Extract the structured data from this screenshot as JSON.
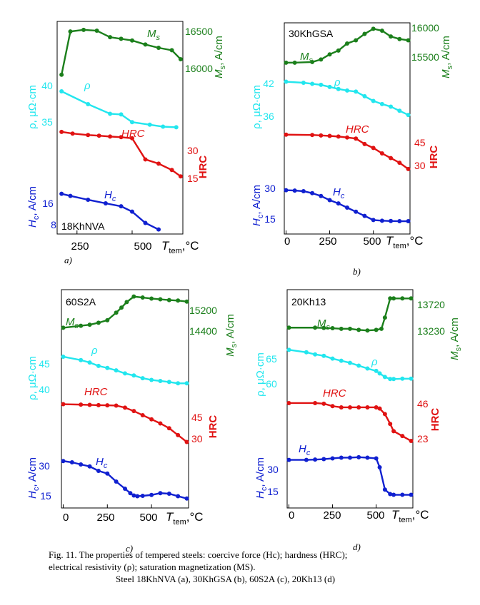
{
  "colors": {
    "Ms": "#1b7f1b",
    "rho": "#22e6ee",
    "HRC": "#e01212",
    "Hc": "#1020d0",
    "axis": "#000000"
  },
  "caption": {
    "line1": "Fig. 11. The properties of tempered steels: coercive force (Hc); hardness (HRC);",
    "line2": "electrical resistivity (ρ); saturation magnetization (MS).",
    "line3": "Steel 18KhNVA (a), 30KhGSA (b), 60S2A (c), 20Kh13 (d)"
  },
  "chart_data": [
    {
      "type": "line",
      "panel_label": "a)",
      "steel": "18KhNVA",
      "xlabel_main": "T",
      "xlabel_sub": "tem",
      "xlabel_unit": ",°C",
      "x_ticks": [
        250,
        500
      ],
      "x_range": [
        160,
        730
      ],
      "left_labels": [
        "H",
        "c",
        ", A/cm",
        "ρ, μΩ·cm"
      ],
      "right_labels": [
        "M",
        "s",
        ", A/cm",
        "HRC"
      ],
      "left_ticks": {
        "Hc": [
          "16",
          "8"
        ],
        "rho": [
          "40",
          "35"
        ]
      },
      "right_ticks": {
        "Ms": [
          "16500",
          "16000"
        ],
        "HRC": [
          "30",
          "15"
        ]
      },
      "series": [
        {
          "key": "Ms",
          "name": "Ms",
          "x": [
            180,
            220,
            280,
            340,
            400,
            450,
            500,
            560,
            620,
            680,
            720
          ],
          "y": [
            15970,
            16500,
            16520,
            16510,
            16430,
            16410,
            16390,
            16340,
            16300,
            16270,
            16160
          ],
          "range": [
            15880,
            16580
          ]
        },
        {
          "key": "rho",
          "name": "ρ",
          "x": [
            180,
            300,
            400,
            450,
            500,
            580,
            640,
            700
          ],
          "y": [
            40.0,
            38.0,
            36.5,
            36.4,
            35.2,
            34.8,
            34.5,
            34.4
          ],
          "range": [
            32,
            42
          ]
        },
        {
          "key": "HRC",
          "name": "HRC",
          "x": [
            180,
            230,
            300,
            350,
            400,
            450,
            500,
            560,
            620,
            680,
            720
          ],
          "y": [
            35.0,
            34.2,
            33.5,
            33.2,
            32.8,
            32.5,
            32.0,
            22.0,
            20.0,
            17.0,
            14.0
          ],
          "range": [
            8,
            40
          ]
        },
        {
          "key": "Hc",
          "name": "Hc",
          "x": [
            180,
            220,
            300,
            380,
            450,
            500,
            560,
            620
          ],
          "y": [
            20.0,
            19.3,
            18.0,
            16.8,
            15.8,
            14.0,
            10.2,
            8.0
          ],
          "range": [
            6,
            24
          ]
        }
      ]
    },
    {
      "type": "line",
      "panel_label": "b)",
      "steel": "30KhGSA",
      "xlabel_main": "T",
      "xlabel_sub": "tem",
      "xlabel_unit": ",°C",
      "x_ticks": [
        0,
        250,
        500
      ],
      "x_range": [
        -10,
        710
      ],
      "left_labels": [
        "H",
        "c",
        ", A/cm",
        "ρ, μΩ·cm"
      ],
      "right_labels": [
        "M",
        "s",
        ", A/cm",
        "HRC"
      ],
      "left_ticks": {
        "Hc": [
          "30",
          "15"
        ],
        "rho": [
          "42",
          "36"
        ]
      },
      "right_ticks": {
        "Ms": [
          "16000",
          "15500"
        ],
        "HRC": [
          "45",
          "30"
        ]
      },
      "series": [
        {
          "key": "Ms",
          "name": "Ms",
          "x": [
            0,
            50,
            150,
            200,
            250,
            300,
            350,
            400,
            450,
            500,
            550,
            600,
            650,
            700
          ],
          "y": [
            15430,
            15430,
            15440,
            15480,
            15560,
            15620,
            15730,
            15780,
            15880,
            15960,
            15930,
            15840,
            15800,
            15780
          ],
          "range": [
            15350,
            16020
          ]
        },
        {
          "key": "rho",
          "name": "ρ",
          "x": [
            0,
            100,
            150,
            200,
            250,
            300,
            350,
            400,
            450,
            500,
            550,
            600,
            650,
            700
          ],
          "y": [
            42.0,
            41.8,
            41.6,
            41.4,
            41.0,
            40.6,
            40.3,
            40.1,
            39.2,
            38.3,
            37.7,
            37.2,
            36.4,
            35.6
          ],
          "range": [
            33,
            44
          ]
        },
        {
          "key": "HRC",
          "name": "HRC",
          "x": [
            0,
            150,
            200,
            250,
            300,
            350,
            400,
            450,
            500,
            550,
            600,
            650,
            700
          ],
          "y": [
            50.0,
            49.8,
            49.5,
            49.2,
            48.8,
            48.2,
            47.5,
            44.0,
            41.5,
            38.0,
            35.0,
            32.0,
            28.0
          ],
          "range": [
            22,
            54
          ]
        },
        {
          "key": "Hc",
          "name": "Hc",
          "x": [
            0,
            50,
            100,
            150,
            200,
            250,
            300,
            350,
            400,
            450,
            500,
            550,
            600,
            650,
            700
          ],
          "y": [
            31.0,
            30.8,
            30.4,
            29.2,
            27.5,
            25.0,
            23.0,
            20.5,
            18.0,
            15.5,
            13.0,
            12.6,
            12.4,
            12.3,
            12.3
          ],
          "range": [
            8,
            36
          ]
        }
      ]
    },
    {
      "type": "line",
      "panel_label": "c)",
      "steel": "60S2A",
      "xlabel_main": "T",
      "xlabel_sub": "tem",
      "xlabel_unit": ",°C",
      "x_ticks": [
        0,
        250,
        500
      ],
      "x_range": [
        -10,
        710
      ],
      "left_labels": [
        "H",
        "c",
        ", A/cm",
        "ρ, μΩ·cm"
      ],
      "right_labels": [
        "M",
        "s",
        ", A/cm",
        "HRC"
      ],
      "left_ticks": {
        "Hc": [
          "30",
          "15"
        ],
        "rho": [
          "45",
          "40"
        ]
      },
      "right_ticks": {
        "Ms": [
          "15200",
          "14400"
        ],
        "HRC": [
          "45",
          "30"
        ]
      },
      "series": [
        {
          "key": "Ms",
          "name": "Ms",
          "x": [
            0,
            100,
            150,
            200,
            250,
            300,
            330,
            360,
            400,
            450,
            500,
            550,
            600,
            650,
            700
          ],
          "y": [
            14400,
            14480,
            14520,
            14600,
            14700,
            15000,
            15200,
            15420,
            15640,
            15600,
            15560,
            15530,
            15500,
            15480,
            15440
          ],
          "range": [
            14100,
            15800
          ]
        },
        {
          "key": "rho",
          "name": "ρ",
          "x": [
            0,
            100,
            150,
            200,
            250,
            300,
            350,
            400,
            450,
            500,
            550,
            600,
            650,
            700
          ],
          "y": [
            47.5,
            46.5,
            45.8,
            44.8,
            44.2,
            43.5,
            42.6,
            42.0,
            41.2,
            40.7,
            40.4,
            40.1,
            39.7,
            39.7
          ],
          "range": [
            36,
            50
          ]
        },
        {
          "key": "HRC",
          "name": "HRC",
          "x": [
            0,
            100,
            150,
            200,
            250,
            300,
            350,
            400,
            450,
            500,
            550,
            600,
            650,
            700
          ],
          "y": [
            56.0,
            55.7,
            55.5,
            55.3,
            55.2,
            55.0,
            53.5,
            51.0,
            48.0,
            45.0,
            42.0,
            38.5,
            33.5,
            28.5
          ],
          "range": [
            22,
            62
          ]
        },
        {
          "key": "Hc",
          "name": "Hc",
          "x": [
            0,
            50,
            100,
            150,
            200,
            250,
            300,
            350,
            380,
            400,
            420,
            450,
            500,
            550,
            600,
            650,
            700
          ],
          "y": [
            33.5,
            32.8,
            31.6,
            30.5,
            28.0,
            26.5,
            22.0,
            18.0,
            15.5,
            14.2,
            13.8,
            14.0,
            14.5,
            15.5,
            15.2,
            13.8,
            12.5
          ],
          "range": [
            8,
            38
          ]
        }
      ]
    },
    {
      "type": "line",
      "panel_label": "d)",
      "steel": "20Kh13",
      "xlabel_main": "T",
      "xlabel_sub": "tem",
      "xlabel_unit": ",°C",
      "x_ticks": [
        0,
        250,
        500
      ],
      "x_range": [
        -10,
        710
      ],
      "left_labels": [
        "H",
        "c",
        ", A/cm",
        "ρ, μΩ·cm"
      ],
      "right_labels": [
        "M",
        "s",
        ", A/cm",
        "HRC"
      ],
      "left_ticks": {
        "Hc": [
          "30",
          "15"
        ],
        "rho": [
          "65",
          "60"
        ]
      },
      "right_ticks": {
        "Ms": [
          "13720",
          "13230"
        ],
        "HRC": [
          "46",
          "23"
        ]
      },
      "series": [
        {
          "key": "Ms",
          "name": "Ms",
          "x": [
            0,
            150,
            200,
            250,
            300,
            350,
            400,
            450,
            500,
            530,
            550,
            580,
            600,
            650,
            700
          ],
          "y": [
            13200,
            13200,
            13195,
            13190,
            13180,
            13180,
            13160,
            13150,
            13160,
            13180,
            13380,
            13720,
            13720,
            13720,
            13720
          ],
          "range": [
            13000,
            13800
          ]
        },
        {
          "key": "rho",
          "name": "ρ",
          "x": [
            0,
            100,
            150,
            200,
            250,
            300,
            350,
            400,
            450,
            500,
            520,
            550,
            580,
            600,
            650,
            700
          ],
          "y": [
            67.5,
            66.8,
            66.2,
            65.8,
            65.0,
            64.4,
            63.8,
            63.0,
            62.2,
            61.5,
            60.8,
            59.8,
            59.2,
            59.2,
            59.3,
            59.3
          ],
          "range": [
            55,
            70
          ]
        },
        {
          "key": "HRC",
          "name": "HRC",
          "x": [
            0,
            150,
            200,
            250,
            300,
            350,
            400,
            450,
            500,
            520,
            550,
            580,
            600,
            650,
            700
          ],
          "y": [
            53.0,
            53.0,
            52.5,
            50.5,
            49.5,
            49.5,
            49.5,
            49.5,
            49.5,
            48.5,
            44.0,
            36.0,
            30.0,
            26.0,
            22.0
          ],
          "range": [
            15,
            60
          ]
        },
        {
          "key": "Hc",
          "name": "Hc",
          "x": [
            0,
            100,
            150,
            200,
            250,
            300,
            350,
            400,
            450,
            500,
            520,
            550,
            580,
            600,
            650,
            700
          ],
          "y": [
            35.0,
            35.0,
            35.2,
            35.5,
            36.0,
            36.5,
            36.5,
            36.8,
            36.5,
            36.0,
            30.0,
            15.0,
            12.0,
            11.5,
            11.5,
            11.5
          ],
          "range": [
            6,
            42
          ]
        }
      ]
    }
  ]
}
